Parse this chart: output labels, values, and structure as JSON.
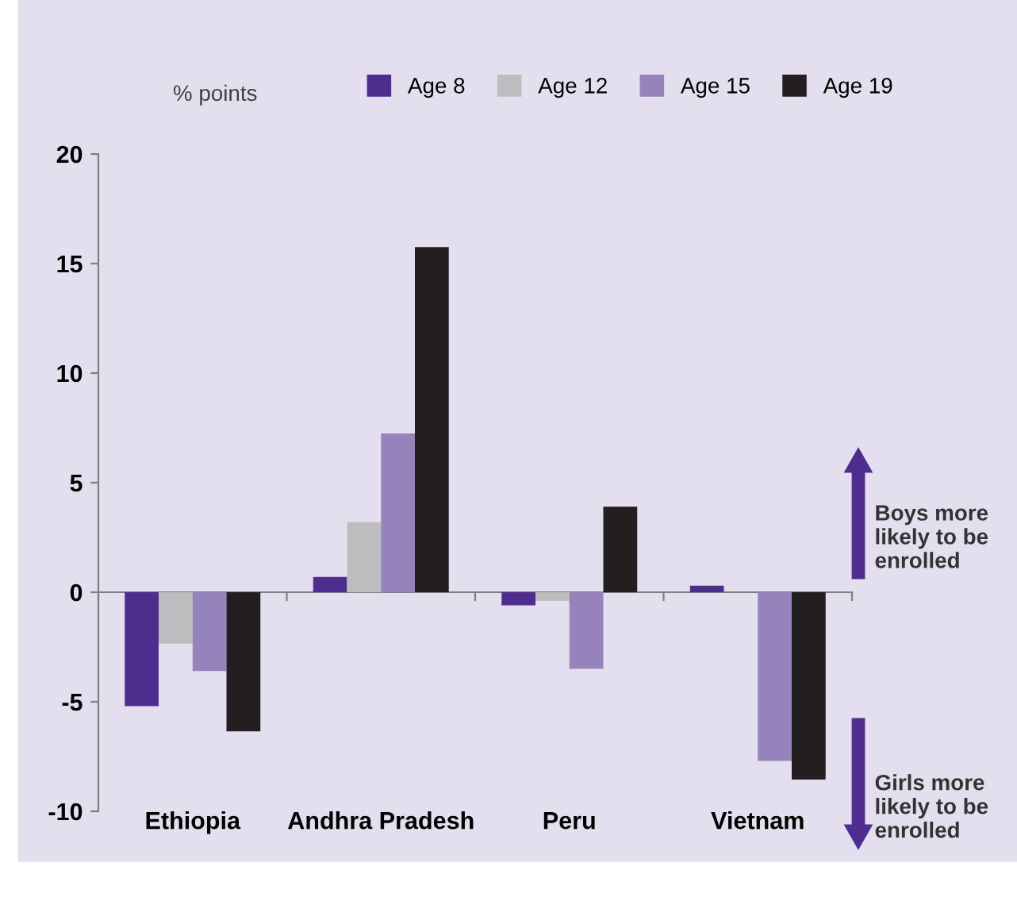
{
  "chart_data": {
    "type": "bar",
    "ylabel": "% points",
    "categories": [
      "Ethiopia",
      "Andhra Pradesh",
      "Peru",
      "Vietnam"
    ],
    "series": [
      {
        "name": "Age 8",
        "color": "#4f2d8f",
        "values": [
          -5.2,
          0.7,
          -0.6,
          0.3
        ]
      },
      {
        "name": "Age 12",
        "color": "#bdbdbf",
        "values": [
          -2.35,
          3.2,
          -0.4,
          0
        ]
      },
      {
        "name": "Age 15",
        "color": "#9683bb",
        "values": [
          -3.6,
          7.25,
          -3.5,
          -7.7
        ]
      },
      {
        "name": "Age 19",
        "color": "#231f20",
        "values": [
          -6.35,
          15.75,
          3.9,
          -8.55
        ]
      }
    ],
    "ylim": [
      -10,
      20
    ],
    "yticks": [
      -10,
      -5,
      0,
      5,
      10,
      15,
      20
    ],
    "legend": "top",
    "annotations": [
      "Boys more likely to be enrolled",
      "Girls more likely to be enrolled"
    ]
  }
}
